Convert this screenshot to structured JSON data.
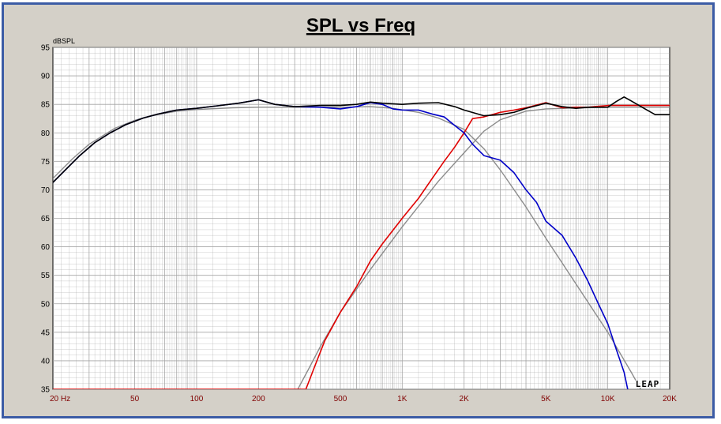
{
  "chart_data": {
    "type": "line",
    "title": "SPL vs Freq",
    "ylabel": "dBSPL",
    "xlabel": "",
    "xscale": "log",
    "xlim": [
      20,
      20000
    ],
    "ylim": [
      35,
      95
    ],
    "grid": true,
    "y_ticks": [
      "95",
      "90",
      "85",
      "80",
      "75",
      "70",
      "65",
      "60",
      "55",
      "50",
      "45",
      "40",
      "35"
    ],
    "x_ticks": [
      {
        "f": 20,
        "label": "20  Hz"
      },
      {
        "f": 50,
        "label": "50"
      },
      {
        "f": 100,
        "label": "100"
      },
      {
        "f": 200,
        "label": "200"
      },
      {
        "f": 500,
        "label": "500"
      },
      {
        "f": 1000,
        "label": "1K"
      },
      {
        "f": 2000,
        "label": "2K"
      },
      {
        "f": 5000,
        "label": "5K"
      },
      {
        "f": 10000,
        "label": "10K"
      },
      {
        "f": 20000,
        "label": "20K"
      }
    ],
    "watermark": "LEAP",
    "colors": {
      "black": "#000000",
      "blue": "#0000c8",
      "red": "#e00000",
      "gray": "#8c8c8c",
      "axis_text": "#800000",
      "grid": "#a0a0a0",
      "frame": "#3b5ba5",
      "plot_bg": "#ffffff"
    },
    "series": [
      {
        "color": "black",
        "points": [
          [
            20,
            71.3
          ],
          [
            23,
            73.5
          ],
          [
            27,
            76
          ],
          [
            32,
            78.3
          ],
          [
            38,
            80
          ],
          [
            45,
            81.4
          ],
          [
            55,
            82.6
          ],
          [
            65,
            83.3
          ],
          [
            80,
            84
          ],
          [
            100,
            84.3
          ],
          [
            130,
            84.8
          ],
          [
            160,
            85.2
          ],
          [
            200,
            85.8
          ],
          [
            240,
            85
          ],
          [
            300,
            84.6
          ],
          [
            400,
            84.8
          ],
          [
            500,
            84.8
          ],
          [
            600,
            85
          ],
          [
            700,
            85.4
          ],
          [
            800,
            85.2
          ],
          [
            1000,
            85
          ],
          [
            1200,
            85.2
          ],
          [
            1500,
            85.3
          ],
          [
            1800,
            84.6
          ],
          [
            2000,
            84
          ],
          [
            2500,
            83
          ],
          [
            3000,
            83.2
          ],
          [
            3500,
            83.6
          ],
          [
            4000,
            84.3
          ],
          [
            5000,
            85.2
          ],
          [
            6000,
            84.6
          ],
          [
            7000,
            84.3
          ],
          [
            8000,
            84.5
          ],
          [
            10000,
            84.5
          ],
          [
            11000,
            85.5
          ],
          [
            12000,
            86.3
          ],
          [
            13000,
            85.6
          ],
          [
            15000,
            84.3
          ],
          [
            17000,
            83.2
          ],
          [
            20000,
            83.2
          ]
        ]
      },
      {
        "color": "blue",
        "points": [
          [
            20,
            71.3
          ],
          [
            23,
            73.5
          ],
          [
            27,
            76
          ],
          [
            32,
            78.3
          ],
          [
            38,
            80
          ],
          [
            45,
            81.4
          ],
          [
            55,
            82.6
          ],
          [
            65,
            83.3
          ],
          [
            80,
            84
          ],
          [
            100,
            84.3
          ],
          [
            130,
            84.8
          ],
          [
            160,
            85.2
          ],
          [
            200,
            85.8
          ],
          [
            240,
            85
          ],
          [
            300,
            84.6
          ],
          [
            400,
            84.5
          ],
          [
            500,
            84.2
          ],
          [
            600,
            84.6
          ],
          [
            700,
            85.3
          ],
          [
            800,
            85
          ],
          [
            900,
            84.2
          ],
          [
            1000,
            84
          ],
          [
            1200,
            84
          ],
          [
            1400,
            83.3
          ],
          [
            1600,
            82.8
          ],
          [
            1800,
            81.3
          ],
          [
            2000,
            80
          ],
          [
            2200,
            78
          ],
          [
            2500,
            76
          ],
          [
            3000,
            75.2
          ],
          [
            3500,
            73
          ],
          [
            4000,
            70
          ],
          [
            4500,
            67.8
          ],
          [
            5000,
            64.5
          ],
          [
            6000,
            62
          ],
          [
            7000,
            58
          ],
          [
            8000,
            54
          ],
          [
            9000,
            50
          ],
          [
            10000,
            46.5
          ],
          [
            11000,
            42
          ],
          [
            12000,
            38
          ],
          [
            12500,
            35
          ]
        ]
      },
      {
        "color": "red",
        "points": [
          [
            20,
            35
          ],
          [
            340,
            35
          ],
          [
            380,
            39.5
          ],
          [
            420,
            43.5
          ],
          [
            500,
            48.5
          ],
          [
            600,
            53
          ],
          [
            700,
            57.5
          ],
          [
            800,
            60.5
          ],
          [
            1000,
            65
          ],
          [
            1200,
            68.5
          ],
          [
            1400,
            72
          ],
          [
            1600,
            75
          ],
          [
            1800,
            77.5
          ],
          [
            2000,
            80
          ],
          [
            2200,
            82.5
          ],
          [
            2500,
            82.8
          ],
          [
            3000,
            83.6
          ],
          [
            3500,
            84
          ],
          [
            4000,
            84.4
          ],
          [
            5000,
            85.3
          ],
          [
            6000,
            84.4
          ],
          [
            7000,
            84.5
          ],
          [
            8000,
            84.5
          ],
          [
            10000,
            84.8
          ],
          [
            20000,
            84.8
          ]
        ]
      },
      {
        "color": "gray",
        "points": [
          [
            20,
            72
          ],
          [
            25,
            75.5
          ],
          [
            30,
            78
          ],
          [
            40,
            80.8
          ],
          [
            50,
            82.2
          ],
          [
            60,
            83
          ],
          [
            80,
            83.8
          ],
          [
            100,
            84.1
          ],
          [
            150,
            84.4
          ],
          [
            200,
            84.5
          ],
          [
            500,
            84.5
          ],
          [
            700,
            84.6
          ],
          [
            900,
            84.3
          ],
          [
            1200,
            83.6
          ],
          [
            1500,
            82.6
          ],
          [
            2000,
            80.6
          ],
          [
            2500,
            77.2
          ],
          [
            3000,
            73.5
          ],
          [
            4000,
            67
          ],
          [
            5000,
            61.5
          ],
          [
            7000,
            53.5
          ],
          [
            10000,
            45
          ],
          [
            13000,
            38
          ],
          [
            15000,
            34
          ]
        ]
      },
      {
        "color": "gray",
        "points": [
          [
            300,
            34
          ],
          [
            350,
            38.5
          ],
          [
            400,
            42.5
          ],
          [
            500,
            48.5
          ],
          [
            700,
            56
          ],
          [
            1000,
            63.5
          ],
          [
            1500,
            71.5
          ],
          [
            2000,
            76.5
          ],
          [
            2500,
            80.3
          ],
          [
            3000,
            82.3
          ],
          [
            4000,
            83.8
          ],
          [
            5000,
            84.2
          ],
          [
            10000,
            84.5
          ],
          [
            20000,
            84.5
          ]
        ]
      }
    ]
  }
}
